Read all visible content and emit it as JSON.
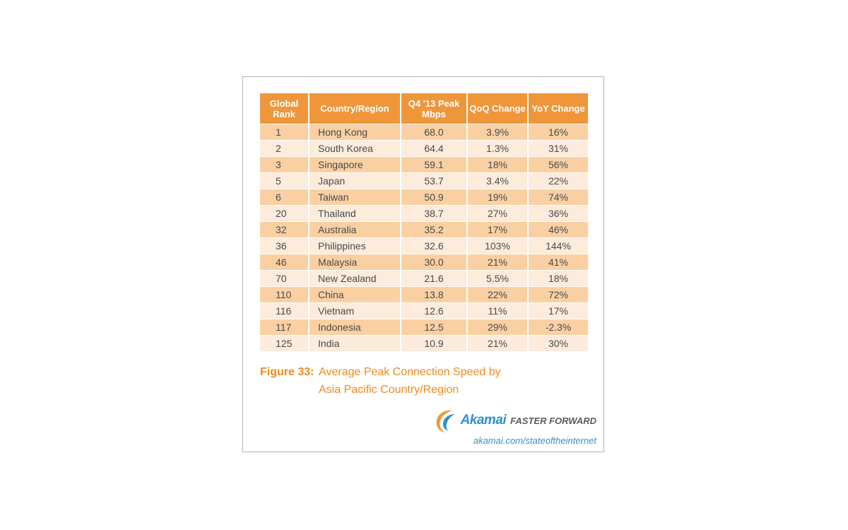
{
  "chart_data": {
    "type": "table",
    "columns": [
      "Global Rank",
      "Country/Region",
      "Q4 '13 Peak Mbps",
      "QoQ Change",
      "YoY Change"
    ],
    "rows": [
      [
        "1",
        "Hong Kong",
        "68.0",
        "3.9%",
        "16%"
      ],
      [
        "2",
        "South Korea",
        "64.4",
        "1.3%",
        "31%"
      ],
      [
        "3",
        "Singapore",
        "59.1",
        "18%",
        "56%"
      ],
      [
        "5",
        "Japan",
        "53.7",
        "3.4%",
        "22%"
      ],
      [
        "6",
        "Taiwan",
        "50.9",
        "19%",
        "74%"
      ],
      [
        "20",
        "Thailand",
        "38.7",
        "27%",
        "36%"
      ],
      [
        "32",
        "Australia",
        "35.2",
        "17%",
        "46%"
      ],
      [
        "36",
        "Philippines",
        "32.6",
        "103%",
        "144%"
      ],
      [
        "46",
        "Malaysia",
        "30.0",
        "21%",
        "41%"
      ],
      [
        "70",
        "New Zealand",
        "21.6",
        "5.5%",
        "18%"
      ],
      [
        "110",
        "China",
        "13.8",
        "22%",
        "72%"
      ],
      [
        "116",
        "Vietnam",
        "12.6",
        "11%",
        "17%"
      ],
      [
        "117",
        "Indonesia",
        "12.5",
        "29%",
        "-2.3%"
      ],
      [
        "125",
        "India",
        "10.9",
        "21%",
        "30%"
      ]
    ],
    "figure_label": "Figure 33:",
    "title": "Average Peak Connection Speed by Asia Pacific Country/Region"
  },
  "branding": {
    "logo_text": "Akamai",
    "tagline": "FASTER FORWARD",
    "url": "akamai.com/stateoftheinternet"
  },
  "colors": {
    "header": "#f0963a",
    "row_dark": "#fad0a3",
    "row_light": "#fdebdc",
    "caption": "#ee8a1f",
    "brand_blue": "#2f8fd1"
  },
  "icons": {
    "logo": "akamai-wave-logo"
  }
}
